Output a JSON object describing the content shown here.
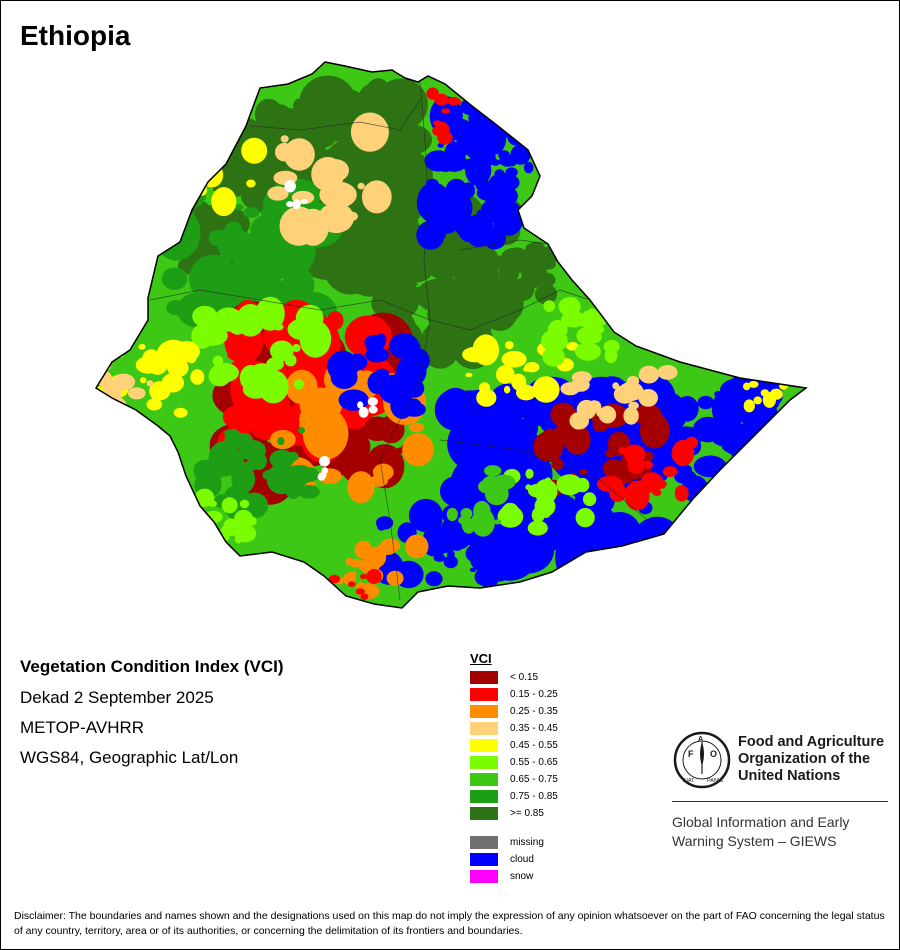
{
  "map": {
    "country": "Ethiopia",
    "index_title": "Vegetation Condition Index (VCI)",
    "period": "Dekad 2 September 2025",
    "sensor": "METOP-AVHRR",
    "projection": "WGS84, Geographic Lat/Lon"
  },
  "legend": {
    "title": "VCI",
    "classes": [
      {
        "label": "< 0.15",
        "color": "#a50000"
      },
      {
        "label": "0.15 - 0.25",
        "color": "#ff0000"
      },
      {
        "label": "0.25 - 0.35",
        "color": "#ff8c00"
      },
      {
        "label": "0.35 - 0.45",
        "color": "#ffd27a"
      },
      {
        "label": "0.45 - 0.55",
        "color": "#ffff00"
      },
      {
        "label": "0.55 - 0.65",
        "color": "#7cfc00"
      },
      {
        "label": "0.65 - 0.75",
        "color": "#3cc814"
      },
      {
        "label": "0.75 - 0.85",
        "color": "#1e9e14"
      },
      {
        "label": ">= 0.85",
        "color": "#2d7314"
      }
    ],
    "other": [
      {
        "label": "missing",
        "color": "#707070"
      },
      {
        "label": "cloud",
        "color": "#0000ff"
      },
      {
        "label": "snow",
        "color": "#ff00ff"
      }
    ]
  },
  "organization": {
    "logo_text": [
      "FAO",
      "FIAT PANIS"
    ],
    "name_lines": [
      "Food and Agriculture",
      "Organization of the",
      "United Nations"
    ],
    "system_lines": [
      "Global Information and Early",
      "Warning System – GIEWS"
    ]
  },
  "disclaimer": "Disclaimer: The boundaries and names shown and the designations used on this map do not imply the expression of any opinion whatsoever on the part of FAO concerning the legal status of any country, territory, area or of its authorities, or concerning the delimitation of its frontiers and boundaries."
}
